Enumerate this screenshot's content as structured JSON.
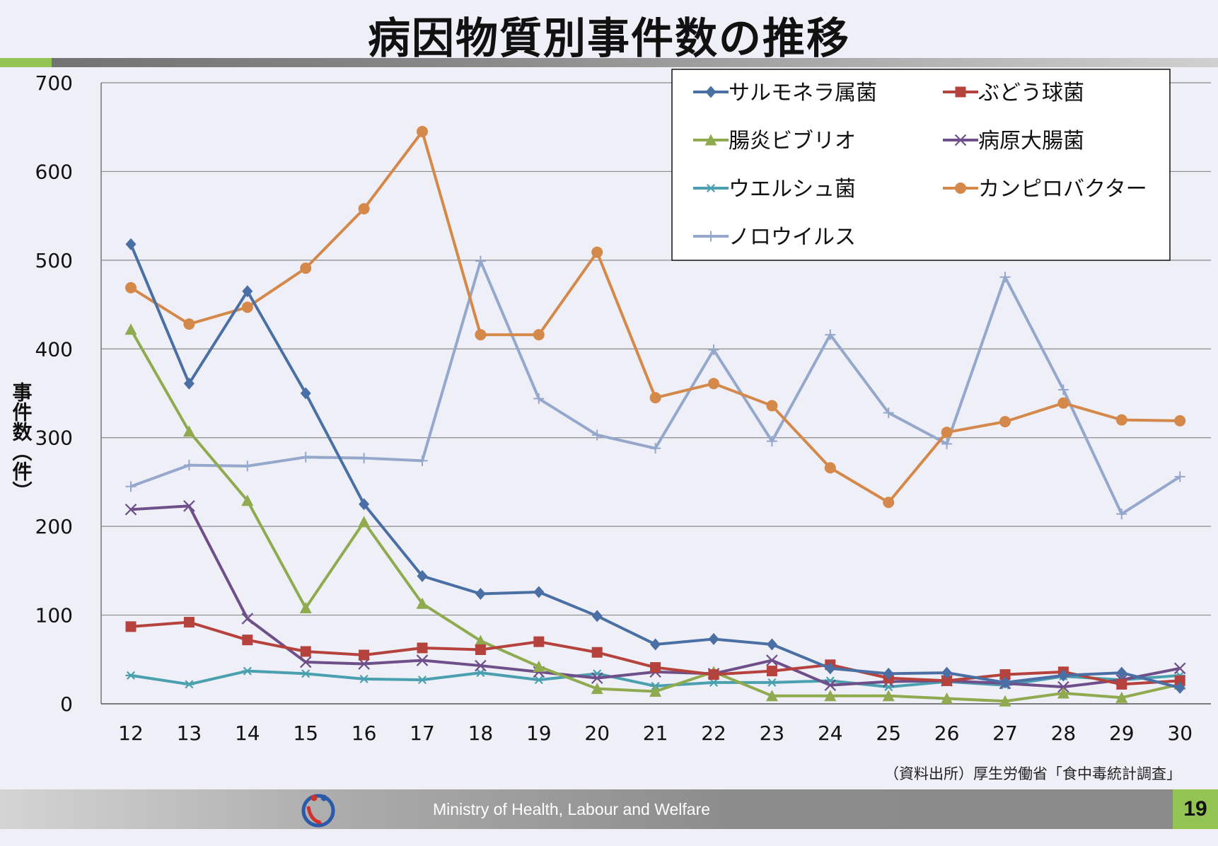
{
  "slide": {
    "title": "病因物質別事件数の推移",
    "source": "（資料出所）厚生労働省「食中毒統計調査」",
    "ministry": "Ministry of Health, Labour and Welfare",
    "page_number": "19",
    "accent_color": "#92c353"
  },
  "chart_data": {
    "type": "line",
    "title": "",
    "xlabel": "",
    "ylabel": "事件数（件）",
    "ylim": [
      0,
      700
    ],
    "yticks": [
      0,
      100,
      200,
      300,
      400,
      500,
      600,
      700
    ],
    "grid": true,
    "legend_position": "top-right",
    "categories": [
      "12",
      "13",
      "14",
      "15",
      "16",
      "17",
      "18",
      "19",
      "20",
      "21",
      "22",
      "23",
      "24",
      "25",
      "26",
      "27",
      "28",
      "29",
      "30"
    ],
    "series": [
      {
        "name": "サルモネラ属菌",
        "color": "#4a6fa5",
        "marker": "diamond",
        "values": [
          518,
          361,
          465,
          350,
          225,
          144,
          124,
          126,
          99,
          67,
          73,
          67,
          40,
          34,
          35,
          24,
          32,
          35,
          18
        ]
      },
      {
        "name": "ぶどう球菌",
        "color": "#b5423c",
        "marker": "square",
        "values": [
          87,
          92,
          72,
          59,
          55,
          63,
          61,
          70,
          58,
          41,
          33,
          37,
          44,
          29,
          26,
          33,
          36,
          22,
          26
        ]
      },
      {
        "name": "腸炎ビブリオ",
        "color": "#8faa4f",
        "marker": "triangle",
        "values": [
          422,
          307,
          229,
          108,
          205,
          113,
          71,
          42,
          17,
          14,
          36,
          9,
          9,
          9,
          6,
          3,
          12,
          7,
          22
        ]
      },
      {
        "name": "病原大腸菌",
        "color": "#6e4f8a",
        "marker": "x",
        "values": [
          219,
          223,
          96,
          47,
          45,
          49,
          43,
          36,
          29,
          36,
          34,
          49,
          21,
          25,
          26,
          23,
          19,
          27,
          40
        ]
      },
      {
        "name": "ウエルシュ菌",
        "color": "#4aa0ae",
        "marker": "star",
        "values": [
          32,
          22,
          37,
          34,
          28,
          27,
          35,
          27,
          34,
          20,
          24,
          24,
          26,
          19,
          25,
          21,
          31,
          27,
          32
        ]
      },
      {
        "name": "カンピロバクター",
        "color": "#d4884a",
        "marker": "circle",
        "values": [
          469,
          428,
          447,
          491,
          558,
          645,
          416,
          416,
          509,
          345,
          361,
          336,
          266,
          227,
          306,
          318,
          339,
          320,
          319
        ]
      },
      {
        "name": "ノロウイルス",
        "color": "#95a8cc",
        "marker": "plus",
        "values": [
          245,
          269,
          268,
          278,
          277,
          274,
          499,
          344,
          303,
          288,
          399,
          296,
          416,
          328,
          293,
          481,
          354,
          214,
          256
        ]
      }
    ]
  }
}
